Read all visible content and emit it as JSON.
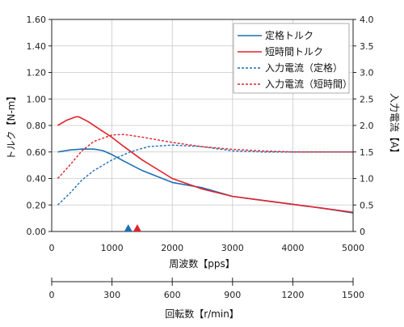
{
  "chart_data": {
    "type": "line",
    "grid": true,
    "legend_placement": "top-right",
    "xlabel": "周波数【pps】",
    "ylabel": "トルク【N-m】",
    "y2label": "入力電流【A】",
    "x2label": "回転数【r/min】",
    "xlim": [
      0,
      5000
    ],
    "ylim": [
      0,
      1.6
    ],
    "y2lim": [
      0,
      4.0
    ],
    "x2lim": [
      0,
      1500
    ],
    "x_ticks": [
      "0",
      "1000",
      "2000",
      "3000",
      "4000",
      "5000"
    ],
    "y_ticks": [
      "0.00",
      "0.20",
      "0.40",
      "0.60",
      "0.80",
      "1.00",
      "1.20",
      "1.40",
      "1.60"
    ],
    "y2_ticks": [
      "0",
      "0.5",
      "1.0",
      "1.5",
      "2.0",
      "2.5",
      "3.0",
      "3.5",
      "4.0"
    ],
    "x2_ticks": [
      "0",
      "300",
      "600",
      "900",
      "1200",
      "1500"
    ],
    "colors": {
      "blue": "#1f6fb5",
      "red": "#e0232b"
    },
    "series": [
      {
        "name": "定格トルク",
        "axis": "left",
        "style": "solid",
        "color": "#1f6fb5",
        "x": [
          100,
          300,
          500,
          700,
          850,
          1000,
          1200,
          1500,
          2000,
          2500,
          3000,
          3500,
          4000,
          4500,
          5000
        ],
        "y": [
          0.6,
          0.615,
          0.622,
          0.622,
          0.61,
          0.58,
          0.53,
          0.46,
          0.37,
          0.33,
          0.265,
          0.235,
          0.205,
          0.175,
          0.14
        ]
      },
      {
        "name": "短時間トルク",
        "axis": "left",
        "style": "solid",
        "color": "#e0232b",
        "x": [
          100,
          250,
          400,
          450,
          600,
          800,
          1000,
          1200,
          1500,
          2000,
          2500,
          3000,
          3500,
          4000,
          4500,
          5000
        ],
        "y": [
          0.8,
          0.84,
          0.865,
          0.865,
          0.83,
          0.77,
          0.71,
          0.64,
          0.54,
          0.4,
          0.32,
          0.265,
          0.235,
          0.205,
          0.175,
          0.145
        ]
      },
      {
        "name": "入力電流（定格）",
        "axis": "right",
        "style": "dashed",
        "color": "#1f6fb5",
        "x": [
          100,
          300,
          500,
          700,
          1000,
          1300,
          1600,
          2000,
          2500,
          3000,
          3500,
          4000,
          5000
        ],
        "y": [
          0.5,
          0.72,
          0.97,
          1.15,
          1.35,
          1.5,
          1.6,
          1.63,
          1.6,
          1.52,
          1.5,
          1.5,
          1.5
        ]
      },
      {
        "name": "入力電流（短時間）",
        "axis": "right",
        "style": "dashed",
        "color": "#e0232b",
        "x": [
          100,
          300,
          500,
          700,
          1000,
          1200,
          1500,
          2000,
          2500,
          3000,
          3500,
          4000,
          5000
        ],
        "y": [
          1.0,
          1.25,
          1.52,
          1.7,
          1.82,
          1.83,
          1.78,
          1.68,
          1.6,
          1.55,
          1.52,
          1.5,
          1.5
        ]
      }
    ],
    "markers": [
      {
        "name": "blue-triangle-marker",
        "x": 1270,
        "color": "#1f6fb5"
      },
      {
        "name": "red-triangle-marker",
        "x": 1420,
        "color": "#e0232b"
      }
    ]
  }
}
